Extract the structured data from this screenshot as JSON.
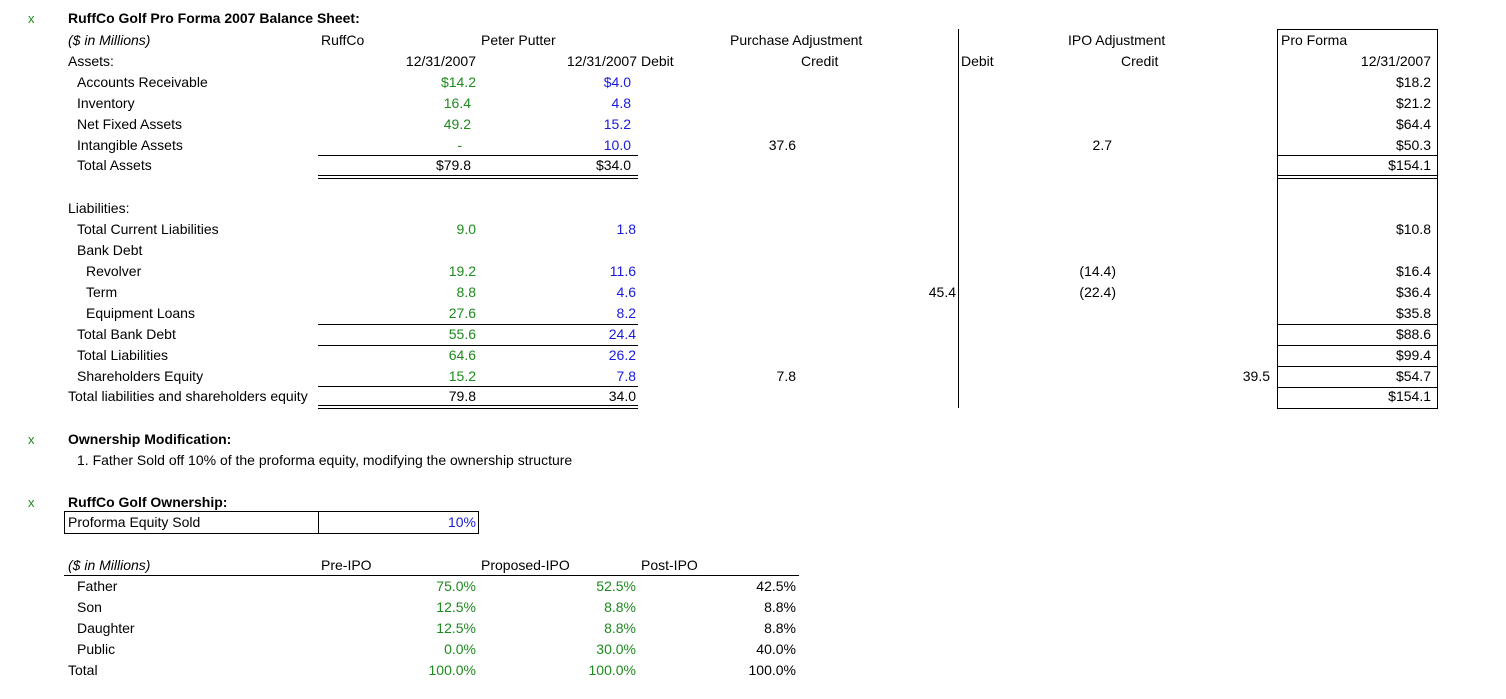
{
  "markers": [
    "x",
    "x",
    "x"
  ],
  "balance_sheet": {
    "title": "RuffCo Golf Pro Forma 2007 Balance Sheet:",
    "units": "($ in Millions)",
    "col_ruffco": "RuffCo",
    "col_peter": "Peter Putter",
    "col_purchase": "Purchase Adjustment",
    "col_ipo": "IPO Adjustment",
    "col_proforma": "Pro Forma",
    "assets_label": "Assets:",
    "date_ruffco": "12/31/2007",
    "date_peter": "12/31/2007",
    "debit_purchase": "Debit",
    "credit_purchase": "Credit",
    "debit_ipo": "Debit",
    "credit_ipo": "Credit",
    "date_proforma": "12/31/2007",
    "assets": [
      {
        "label": "Accounts Receivable",
        "ruffco": "$14.2",
        "peter": "$4.0",
        "pa_credit": "",
        "ipo_credit": "",
        "proforma": "$18.2"
      },
      {
        "label": "Inventory",
        "ruffco": "16.4",
        "peter": "4.8",
        "pa_credit": "",
        "ipo_credit": "",
        "proforma": "$21.2"
      },
      {
        "label": "Net Fixed Assets",
        "ruffco": "49.2",
        "peter": "15.2",
        "pa_credit": "",
        "ipo_credit": "",
        "proforma": "$64.4"
      },
      {
        "label": "Intangible Assets",
        "ruffco": "-",
        "peter": "10.0",
        "pa_credit": "37.6",
        "ipo_credit": "2.7",
        "proforma": "$50.3"
      },
      {
        "label": "Total Assets",
        "ruffco": "$79.8",
        "peter": "$34.0",
        "pa_credit": "",
        "ipo_credit": "",
        "proforma": "$154.1"
      }
    ],
    "liabilities_label": "Liabilities:",
    "liabilities": [
      {
        "label": "Total Current Liabilities",
        "ruffco": "9.0",
        "peter": "1.8",
        "ipo_debit": "",
        "ipo_credit": "",
        "proforma": "$10.8"
      },
      {
        "label": "Bank Debt",
        "ruffco": "",
        "peter": "",
        "ipo_debit": "",
        "ipo_credit": "",
        "proforma": ""
      },
      {
        "label": "Revolver",
        "ruffco": "19.2",
        "peter": "11.6",
        "ipo_debit": "",
        "ipo_credit": "(14.4)",
        "proforma": "$16.4"
      },
      {
        "label": "Term",
        "ruffco": "8.8",
        "peter": "4.6",
        "ipo_debit": "45.4",
        "ipo_credit": "(22.4)",
        "proforma": "$36.4"
      },
      {
        "label": "Equipment Loans",
        "ruffco": "27.6",
        "peter": "8.2",
        "ipo_debit": "",
        "ipo_credit": "",
        "proforma": "$35.8"
      },
      {
        "label": "Total Bank Debt",
        "ruffco": "55.6",
        "peter": "24.4",
        "ipo_debit": "",
        "ipo_credit": "",
        "proforma": "$88.6"
      },
      {
        "label": "Total Liabilities",
        "ruffco": "64.6",
        "peter": "26.2",
        "ipo_debit": "",
        "ipo_credit": "",
        "proforma": "$99.4"
      },
      {
        "label": "Shareholders Equity",
        "ruffco": "15.2",
        "peter": "7.8",
        "pa_credit": "7.8",
        "ipo_credit2": "39.5",
        "proforma": "$54.7"
      },
      {
        "label": "Total liabilities and shareholders equity",
        "ruffco": "79.8",
        "peter": "34.0",
        "proforma": "$154.1"
      }
    ]
  },
  "ownership_mod": {
    "title": "Ownership Modification:",
    "note": "1. Father Sold off 10% of the proforma equity, modifying the ownership structure"
  },
  "ownership": {
    "title": "RuffCo Golf Ownership:",
    "equity_sold_label": "Proforma Equity Sold",
    "equity_sold_value": "10%",
    "units": "($ in Millions)",
    "col_pre": "Pre-IPO",
    "col_proposed": "Proposed-IPO",
    "col_post": "Post-IPO",
    "rows": [
      {
        "label": "Father",
        "pre": "75.0%",
        "proposed": "52.5%",
        "post": "42.5%"
      },
      {
        "label": "Son",
        "pre": "12.5%",
        "proposed": "8.8%",
        "post": "8.8%"
      },
      {
        "label": "Daughter",
        "pre": "12.5%",
        "proposed": "8.8%",
        "post": "8.8%"
      },
      {
        "label": "Public",
        "pre": "0.0%",
        "proposed": "30.0%",
        "post": "40.0%"
      },
      {
        "label": "Total",
        "pre": "100.0%",
        "proposed": "100.0%",
        "post": "100.0%"
      }
    ]
  }
}
